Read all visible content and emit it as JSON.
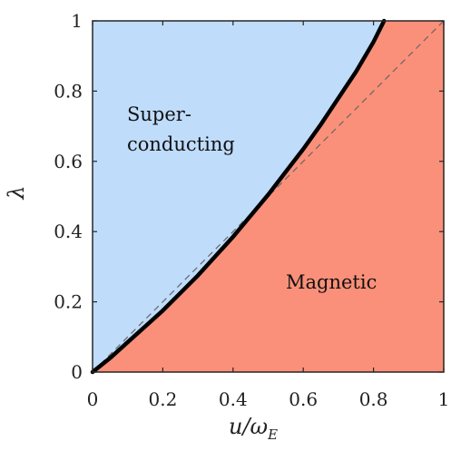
{
  "chart_data": {
    "type": "area",
    "xlabel": "u/ω",
    "xlabel_sub": "E",
    "ylabel": "λ",
    "xlim": [
      0,
      1
    ],
    "ylim": [
      0,
      1
    ],
    "xticks": [
      "0",
      "0.2",
      "0.4",
      "0.6",
      "0.8",
      "1"
    ],
    "yticks": [
      "0",
      "0.2",
      "0.4",
      "0.6",
      "0.8",
      "1"
    ],
    "grid": false,
    "regions": {
      "upper": {
        "lines": [
          "Super-",
          "conducting"
        ],
        "color": "#bfdcfb"
      },
      "lower": {
        "label": "Magnetic",
        "color": "#fa9079"
      }
    },
    "boundary": {
      "color": "#000000",
      "x": [
        0,
        0.05,
        0.1,
        0.15,
        0.2,
        0.25,
        0.3,
        0.35,
        0.4,
        0.45,
        0.5,
        0.55,
        0.6,
        0.65,
        0.7,
        0.75,
        0.8,
        0.83
      ],
      "y": [
        0,
        0.04,
        0.085,
        0.13,
        0.175,
        0.225,
        0.275,
        0.33,
        0.385,
        0.445,
        0.505,
        0.57,
        0.635,
        0.705,
        0.78,
        0.855,
        0.94,
        1.0
      ]
    },
    "reference_line": {
      "x": [
        0,
        1
      ],
      "y": [
        0,
        1
      ],
      "color": "#666666",
      "style": "dashed"
    }
  }
}
